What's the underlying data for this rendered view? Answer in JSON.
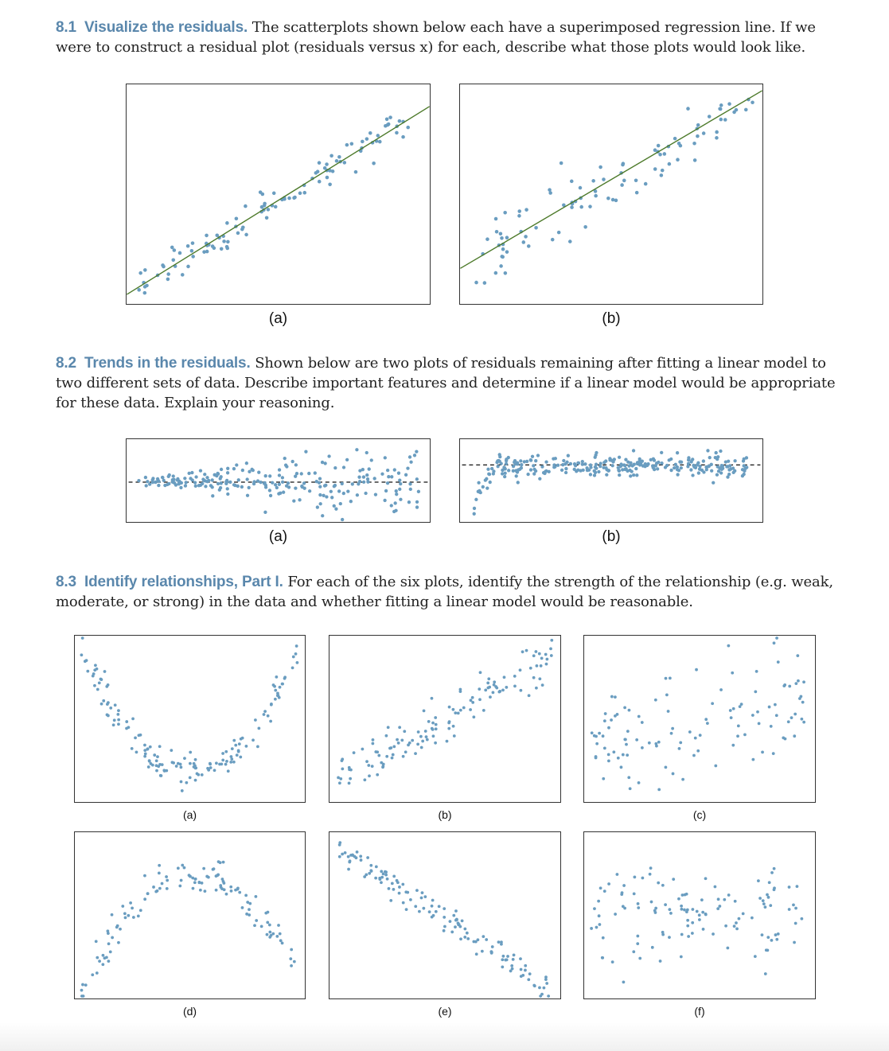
{
  "problems": [
    {
      "number": "8.1",
      "title": "Visualize the residuals.",
      "text": "The scatterplots shown below each have a superimposed regression line. If we were to construct a residual plot (residuals versus x) for each, describe what those plots would look like."
    },
    {
      "number": "8.2",
      "title": "Trends in the residuals.",
      "text": "Shown below are two plots of residuals remaining after fitting a linear model to two different sets of data. Describe important features and determine if a linear model would be appropriate for these data. Explain your reasoning."
    },
    {
      "number": "8.3",
      "title": "Identify relationships, Part I.",
      "text": "For each of the six plots, identify the strength of the relationship (e.g. weak, moderate, or strong) in the data and whether fitting a linear model would be reasonable."
    }
  ],
  "colors": {
    "heading": "#5a87ac",
    "points": "#6a9dc0",
    "regression_line": "#4d7a2a",
    "text": "#222222"
  },
  "figures": [
    {
      "problem": "8.1",
      "panels": [
        {
          "label": "(a)",
          "kind": "scatter_with_regression_line",
          "pattern": "strong positive linear, small constant scatter",
          "points": 110
        },
        {
          "label": "(b)",
          "kind": "scatter_with_regression_line",
          "pattern": "positive linear, scatter decreasing as x increases",
          "points": 95
        }
      ]
    },
    {
      "problem": "8.2",
      "panels": [
        {
          "label": "(a)",
          "kind": "residual_plot",
          "pattern": "fan shape, variability increasing with x",
          "points": 230
        },
        {
          "label": "(b)",
          "kind": "residual_plot",
          "pattern": "curved at left, then flat band",
          "points": 270
        }
      ]
    },
    {
      "problem": "8.3",
      "panels": [
        {
          "label": "(a)",
          "kind": "scatter",
          "pattern": "strong U-shaped curve",
          "points": 150
        },
        {
          "label": "(b)",
          "kind": "scatter",
          "pattern": "strong positive linear",
          "points": 130
        },
        {
          "label": "(c)",
          "kind": "scatter",
          "pattern": "weak positive, large scatter",
          "points": 110
        },
        {
          "label": "(d)",
          "kind": "scatter",
          "pattern": "inverted U-shaped curve",
          "points": 120
        },
        {
          "label": "(e)",
          "kind": "scatter",
          "pattern": "strong negative linear",
          "points": 130
        },
        {
          "label": "(f)",
          "kind": "scatter",
          "pattern": "no relationship",
          "points": 120
        }
      ]
    }
  ]
}
